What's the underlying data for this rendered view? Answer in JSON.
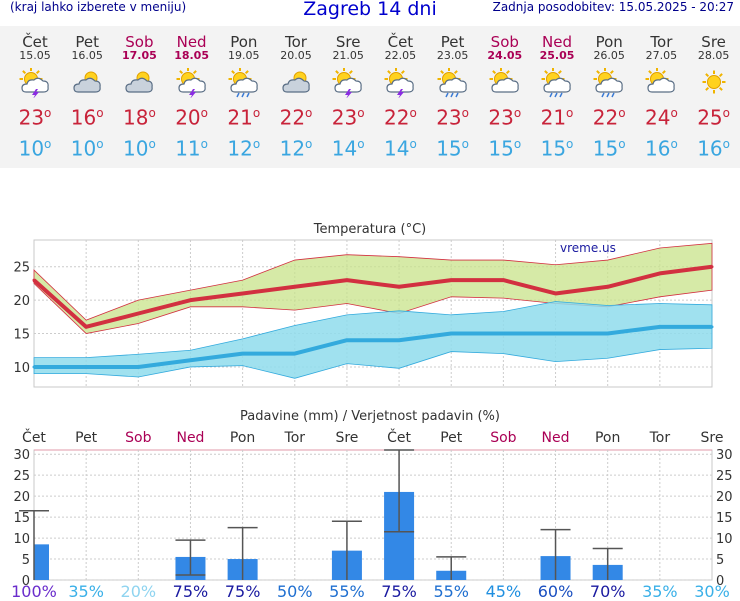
{
  "header": {
    "menu_link": "(kraj lahko izberete v meniju)",
    "title": "Zagreb 14 dni",
    "updated": "Zadnja posodobitev: 15.05.2025 - 20:27"
  },
  "colors": {
    "weekday": "#333333",
    "weekend": "#aa0055",
    "max": "#c8233a",
    "min": "#3aa6e0"
  },
  "days": [
    {
      "name": "Čet",
      "date": "15.05",
      "weekend": false,
      "icon": "sun-cloud-lightning-icon",
      "max": "23",
      "min": "10",
      "rain": "100%",
      "rain_color": "#6a2ccc"
    },
    {
      "name": "Pet",
      "date": "16.05",
      "weekend": false,
      "icon": "cloud-sun-icon",
      "max": "16",
      "min": "10",
      "rain": "35%",
      "rain_color": "#3ab0e8"
    },
    {
      "name": "Sob",
      "date": "17.05",
      "weekend": true,
      "icon": "cloud-sun-icon",
      "max": "18",
      "min": "10",
      "rain": "20%",
      "rain_color": "#8fd4f0"
    },
    {
      "name": "Ned",
      "date": "18.05",
      "weekend": true,
      "icon": "sun-cloud-lightning-icon",
      "max": "20",
      "min": "11",
      "rain": "75%",
      "rain_color": "#1a1aa0"
    },
    {
      "name": "Pon",
      "date": "19.05",
      "weekend": false,
      "icon": "sun-cloud-rain-icon",
      "max": "21",
      "min": "12",
      "rain": "75%",
      "rain_color": "#1a1aa0"
    },
    {
      "name": "Tor",
      "date": "20.05",
      "weekend": false,
      "icon": "cloud-sun-icon",
      "max": "22",
      "min": "12",
      "rain": "50%",
      "rain_color": "#1f6fd0"
    },
    {
      "name": "Sre",
      "date": "21.05",
      "weekend": false,
      "icon": "sun-cloud-lightning-icon",
      "max": "23",
      "min": "14",
      "rain": "55%",
      "rain_color": "#1f6fd0"
    },
    {
      "name": "Čet",
      "date": "22.05",
      "weekend": false,
      "icon": "sun-cloud-lightning-icon",
      "max": "22",
      "min": "14",
      "rain": "75%",
      "rain_color": "#1a1aa0"
    },
    {
      "name": "Pet",
      "date": "23.05",
      "weekend": false,
      "icon": "sun-cloud-rain-icon",
      "max": "23",
      "min": "15",
      "rain": "55%",
      "rain_color": "#1f6fd0"
    },
    {
      "name": "Sob",
      "date": "24.05",
      "weekend": true,
      "icon": "sun-cloud-icon",
      "max": "23",
      "min": "15",
      "rain": "45%",
      "rain_color": "#1f8fe0"
    },
    {
      "name": "Ned",
      "date": "25.05",
      "weekend": true,
      "icon": "sun-cloud-rain-icon",
      "max": "21",
      "min": "15",
      "rain": "60%",
      "rain_color": "#1a4fc0"
    },
    {
      "name": "Pon",
      "date": "26.05",
      "weekend": false,
      "icon": "sun-cloud-rain-icon",
      "max": "22",
      "min": "15",
      "rain": "70%",
      "rain_color": "#1a1aa0"
    },
    {
      "name": "Tor",
      "date": "27.05",
      "weekend": false,
      "icon": "sun-cloud-icon",
      "max": "24",
      "min": "16",
      "rain": "35%",
      "rain_color": "#3ab0e8"
    },
    {
      "name": "Sre",
      "date": "28.05",
      "weekend": false,
      "icon": "sun-icon",
      "max": "25",
      "min": "16",
      "rain": "30%",
      "rain_color": "#3ab0e8"
    }
  ],
  "chart_data": [
    {
      "type": "line",
      "title": "Temperatura (°C)",
      "watermark": "vreme.us",
      "x": [
        "Čet",
        "Pet",
        "Sob",
        "Ned",
        "Pon",
        "Tor",
        "Sre",
        "Čet",
        "Pet",
        "Sob",
        "Ned",
        "Pon",
        "Tor",
        "Sre"
      ],
      "ylim": [
        7,
        29
      ],
      "yticks": [
        10,
        15,
        20,
        25
      ],
      "series": [
        {
          "values": [
            23,
            16,
            18,
            20,
            21,
            22,
            23,
            22,
            23,
            23,
            21,
            22,
            24,
            25
          ],
          "color": "#d23040",
          "band_low": [
            22.5,
            15,
            16.5,
            19,
            19,
            18.5,
            19.5,
            18,
            20.5,
            20.3,
            19.5,
            19,
            20.5,
            21.5
          ],
          "band_high": [
            24.5,
            17,
            20,
            21.5,
            23,
            26,
            26.8,
            26.5,
            26,
            26,
            25.3,
            26,
            27.8,
            28.5
          ],
          "band_color": "#c8e38a"
        },
        {
          "values": [
            10,
            10,
            10,
            11,
            12,
            12,
            14,
            14,
            15,
            15,
            15,
            15,
            16,
            16
          ],
          "color": "#33aadd",
          "band_low": [
            9,
            9,
            8.5,
            10,
            10.2,
            8.3,
            10.5,
            9.8,
            12.3,
            12,
            10.8,
            11.3,
            12.6,
            12.8
          ],
          "band_high": [
            11.4,
            11.4,
            11.9,
            12.5,
            14.2,
            16.2,
            17.8,
            18.4,
            17.8,
            18.3,
            19.8,
            19.2,
            19.5,
            19.3
          ],
          "band_color": "#8fdcec"
        }
      ]
    },
    {
      "type": "bar",
      "title": "Padavine (mm) / Verjetnost padavin (%)",
      "categories": [
        "Čet",
        "Pet",
        "Sob",
        "Ned",
        "Pon",
        "Tor",
        "Sre",
        "Čet",
        "Pet",
        "Sob",
        "Ned",
        "Pon",
        "Tor",
        "Sre"
      ],
      "values": [
        8.5,
        0,
        0,
        5.5,
        5,
        0,
        7,
        21,
        2.2,
        0,
        5.7,
        3.6,
        0,
        0
      ],
      "err_low": [
        0,
        0,
        0,
        1.2,
        0,
        0,
        0,
        11.5,
        0,
        0,
        0,
        0,
        0,
        0
      ],
      "err_high": [
        16.5,
        0,
        0,
        9.5,
        12.5,
        0,
        14,
        31,
        5.5,
        0,
        12,
        7.5,
        0,
        0
      ],
      "ylim": [
        0,
        31
      ],
      "yticks": [
        0,
        5,
        10,
        15,
        20,
        25,
        30
      ],
      "color": "#3388e6"
    }
  ]
}
